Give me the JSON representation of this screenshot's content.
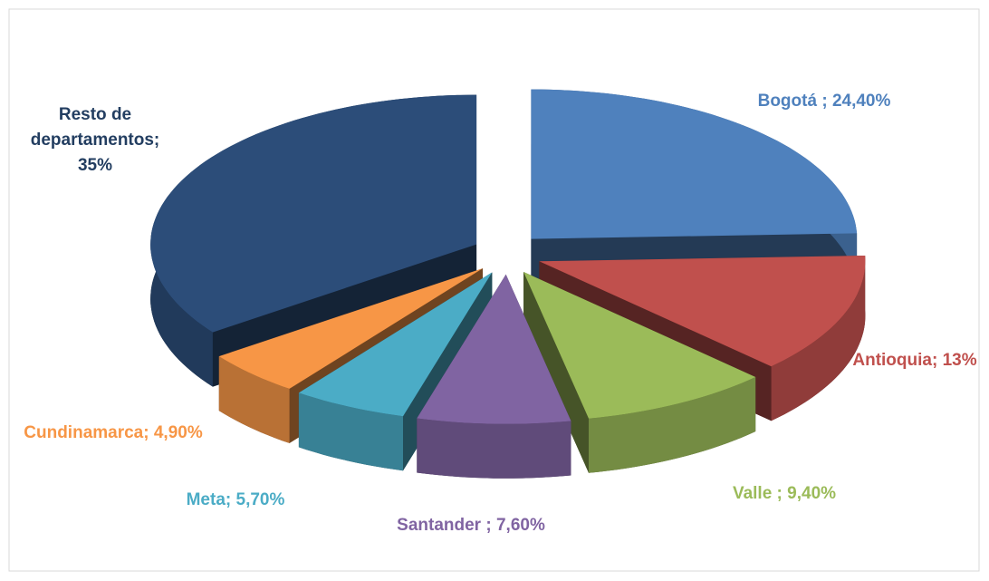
{
  "chart_data": {
    "type": "pie3d",
    "categories": [
      "Bogotá ;",
      "Antioquia;",
      "Valle ;",
      "Santander ;",
      "Meta;",
      "Cundinamarca;",
      "Resto de departamentos;"
    ],
    "values": [
      24.4,
      13,
      9.4,
      7.6,
      5.7,
      4.9,
      35
    ],
    "value_labels": [
      "24,40%",
      "13%",
      "9,40%",
      "7,60%",
      "5,70%",
      "4,90%",
      "35%"
    ],
    "colors": [
      "#4f81bd",
      "#c0504d",
      "#9bbb59",
      "#8064a2",
      "#4bacc6",
      "#f79646",
      "#2c4d79"
    ]
  }
}
